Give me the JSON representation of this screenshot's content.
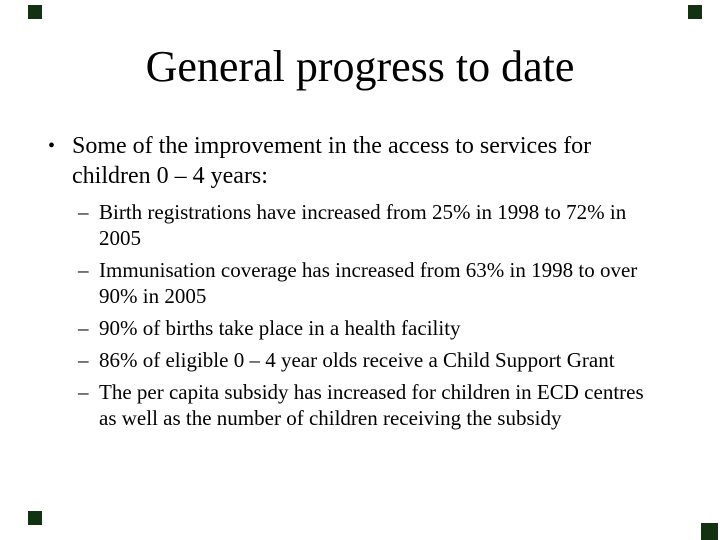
{
  "slide": {
    "title": "General progress to date",
    "bullet": {
      "marker": "•",
      "text": "Some of the improvement in the access to services for\nchildren 0 – 4 years:"
    },
    "sub_bullet_marker": "–",
    "sub_bullets": [
      "Birth registrations have increased from 25% in 1998 to 72% in\n2005",
      "Immunisation coverage has increased from 63% in 1998 to over\n90% in 2005",
      "90% of births take place in a health facility",
      "86% of eligible 0 – 4 year olds receive a Child Support Grant",
      "The per capita subsidy has increased for children in ECD centres\nas well as the number of children receiving the subsidy"
    ],
    "decorations": {
      "corner_square_color": "#113311"
    }
  }
}
